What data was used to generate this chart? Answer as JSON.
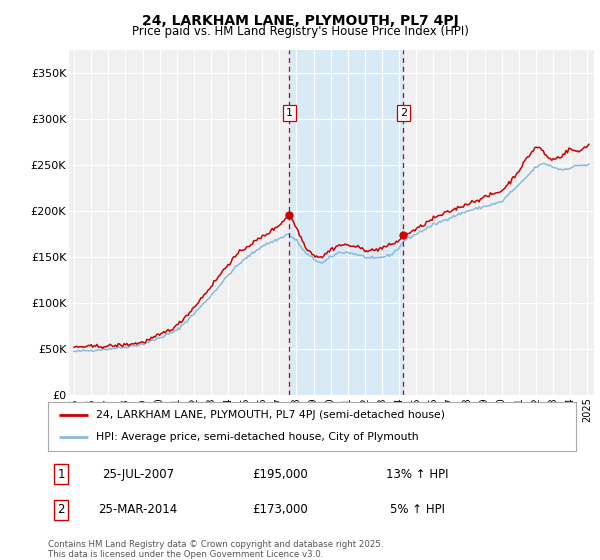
{
  "title": "24, LARKHAM LANE, PLYMOUTH, PL7 4PJ",
  "subtitle": "Price paid vs. HM Land Registry's House Price Index (HPI)",
  "legend_line1": "24, LARKHAM LANE, PLYMOUTH, PL7 4PJ (semi-detached house)",
  "legend_line2": "HPI: Average price, semi-detached house, City of Plymouth",
  "footer": "Contains HM Land Registry data © Crown copyright and database right 2025.\nThis data is licensed under the Open Government Licence v3.0.",
  "sale1_label": "25-JUL-2007",
  "sale1_price": 195000,
  "sale1_hpi": "13% ↑ HPI",
  "sale2_label": "25-MAR-2014",
  "sale2_price": 173000,
  "sale2_hpi": "5% ↑ HPI",
  "red_color": "#cc0000",
  "blue_color": "#88bbdd",
  "shading_color": "#d8eaf5",
  "vline_color": "#cc0000",
  "ylim": [
    0,
    375000
  ],
  "yticks": [
    0,
    50000,
    100000,
    150000,
    200000,
    250000,
    300000,
    350000
  ],
  "ytick_labels": [
    "£0",
    "£50K",
    "£100K",
    "£150K",
    "£200K",
    "£250K",
    "£300K",
    "£350K"
  ],
  "background_color": "#f0f0f0"
}
